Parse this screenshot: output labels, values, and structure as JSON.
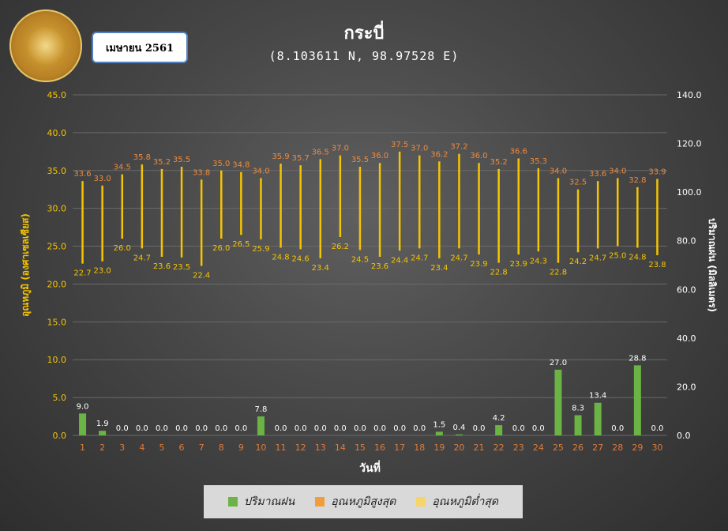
{
  "header": {
    "month": "เมษายน 2561",
    "station": "กระบี่",
    "coords": "(8.103611 N, 98.97528 E)"
  },
  "colors": {
    "rain": "#6bb344",
    "tmax": "#f39c3a",
    "tmin": "#f5c400",
    "tmax_label": "#f08a3c",
    "tick": "#f5c400",
    "xtick": "#e07b39"
  },
  "chart_data": {
    "type": "bar",
    "xlabel": "วันที่",
    "ylabel_left": "อุณหภูมิ (องศาเซลเซียส)",
    "ylabel_right": "ปริมาณฝน (มิลลิเมตร)",
    "ylim_left": [
      0,
      45
    ],
    "ylim_right": [
      0,
      140
    ],
    "left_ticks": [
      "0.0",
      "5.0",
      "10.0",
      "15.0",
      "20.0",
      "25.0",
      "30.0",
      "35.0",
      "40.0",
      "45.0"
    ],
    "right_ticks": [
      "0.0",
      "20.0",
      "40.0",
      "60.0",
      "80.0",
      "100.0",
      "120.0",
      "140.0"
    ],
    "categories": [
      "1",
      "2",
      "3",
      "4",
      "5",
      "6",
      "7",
      "8",
      "9",
      "10",
      "11",
      "12",
      "13",
      "14",
      "15",
      "16",
      "17",
      "18",
      "19",
      "20",
      "21",
      "22",
      "23",
      "24",
      "25",
      "26",
      "27",
      "28",
      "29",
      "30"
    ],
    "series": [
      {
        "name": "ปริมาณฝน",
        "axis": "right",
        "values": [
          9.0,
          1.9,
          0.0,
          0.0,
          0.0,
          0.0,
          0.0,
          0.0,
          0.0,
          7.8,
          0.0,
          0.0,
          0.0,
          0.0,
          0.0,
          0.0,
          0.0,
          0.0,
          1.5,
          0.4,
          0.0,
          4.2,
          0.0,
          0.0,
          27.0,
          8.3,
          13.4,
          0.0,
          28.8,
          0.0
        ],
        "labels": [
          "9.0",
          "1.9",
          "0.0",
          "0.0",
          "0.0",
          "0.0",
          "0.0",
          "0.0",
          "0.0",
          "7.8",
          "0.0",
          "0.0",
          "0.0",
          "0.0",
          "0.0",
          "0.0",
          "0.0",
          "0.0",
          "1.5",
          "0.4",
          "0.0",
          "4.2",
          "0.0",
          "0.0",
          "27.0",
          "8.3",
          "13.4",
          "0.0",
          "28.8",
          "0.0"
        ]
      },
      {
        "name": "อุณหภูมิสูงสุด",
        "axis": "left",
        "values": [
          33.6,
          33.0,
          34.5,
          35.8,
          35.2,
          35.5,
          33.8,
          35.0,
          34.8,
          34.0,
          35.9,
          35.7,
          36.5,
          37.0,
          35.5,
          36.0,
          37.5,
          37.0,
          36.2,
          37.2,
          36.0,
          35.2,
          36.6,
          35.3,
          34.0,
          32.5,
          33.6,
          34.0,
          32.8,
          33.9
        ],
        "labels": [
          "33.6",
          "33.0",
          "34.5",
          "35.8",
          "35.2",
          "35.5",
          "33.8",
          "35.0",
          "34.8",
          "34.0",
          "35.9",
          "35.7",
          "36.5",
          "37.0",
          "35.5",
          "36.0",
          "37.5",
          "37.0",
          "36.2",
          "37.2",
          "36.0",
          "35.2",
          "36.6",
          "35.3",
          "34.0",
          "32.5",
          "33.6",
          "34.0",
          "32.8",
          "33.9"
        ]
      },
      {
        "name": "อุณหภูมิต่ำสุด",
        "axis": "left",
        "values": [
          22.7,
          23.0,
          26.0,
          24.7,
          23.6,
          23.5,
          22.4,
          26.0,
          26.5,
          25.9,
          24.8,
          24.6,
          23.4,
          26.2,
          24.5,
          23.6,
          24.4,
          24.7,
          23.4,
          24.7,
          23.9,
          22.8,
          23.9,
          24.3,
          22.8,
          24.2,
          24.7,
          25.0,
          24.8,
          23.8
        ],
        "labels": [
          "22.7",
          "23.0",
          "26.0",
          "24.7",
          "23.6",
          "23.5",
          "22.4",
          "26.0",
          "26.5",
          "25.9",
          "24.8",
          "24.6",
          "23.4",
          "26.2",
          "24.5",
          "23.6",
          "24.4",
          "24.7",
          "23.4",
          "24.7",
          "23.9",
          "22.8",
          "23.9",
          "24.3",
          "22.8",
          "24.2",
          "24.7",
          "25.0",
          "24.8",
          "23.8"
        ]
      }
    ],
    "legend_position": "bottom",
    "grid": true
  },
  "legend": [
    {
      "label": "ปริมาณฝน",
      "color": "#6bb344"
    },
    {
      "label": "อุณหภูมิสูงสุด",
      "color": "#f39c3a"
    },
    {
      "label": "อุณหภูมิต่ำสุด",
      "color": "#f5d46a"
    }
  ]
}
